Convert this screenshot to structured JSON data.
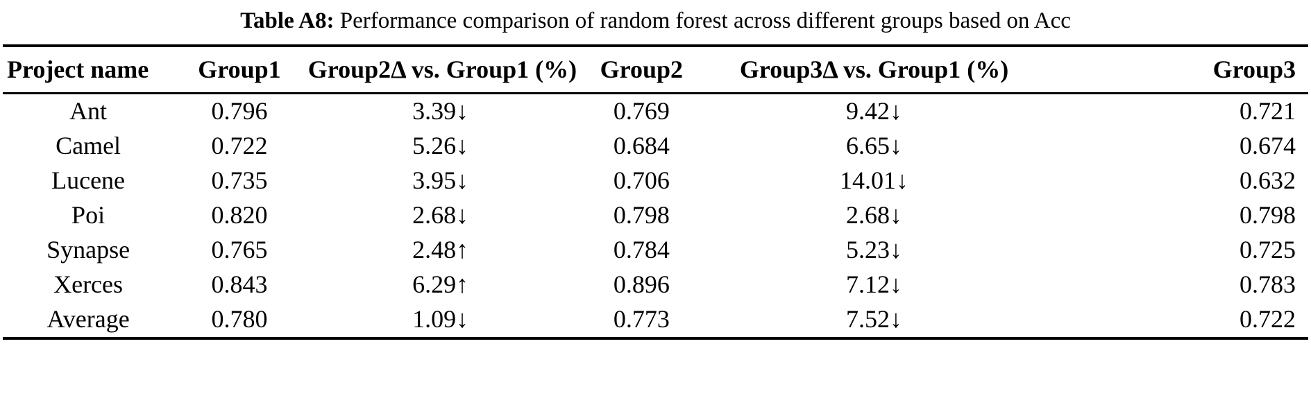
{
  "colors": {
    "text": "#000000",
    "background": "#ffffff"
  },
  "caption": {
    "label": "Table A8:",
    "text": "Performance comparison of random forest across different groups based on Acc"
  },
  "table": {
    "columns": [
      "Project name",
      "Group1",
      "Group2Δ vs. Group1 (%)",
      "Group2",
      "Group3Δ vs. Group1 (%)",
      "Group3"
    ],
    "rows": [
      [
        "Ant",
        "0.796",
        "3.39↓",
        "0.769",
        "9.42↓",
        "0.721"
      ],
      [
        "Camel",
        "0.722",
        "5.26↓",
        "0.684",
        "6.65↓",
        "0.674"
      ],
      [
        "Lucene",
        "0.735",
        "3.95↓",
        "0.706",
        "14.01↓",
        "0.632"
      ],
      [
        "Poi",
        "0.820",
        "2.68↓",
        "0.798",
        "2.68↓",
        "0.798"
      ],
      [
        "Synapse",
        "0.765",
        "2.48↑",
        "0.784",
        "5.23↓",
        "0.725"
      ],
      [
        "Xerces",
        "0.843",
        "6.29↑",
        "0.896",
        "7.12↓",
        "0.783"
      ],
      [
        "Average",
        "0.780",
        "1.09↓",
        "0.773",
        "7.52↓",
        "0.722"
      ]
    ]
  }
}
